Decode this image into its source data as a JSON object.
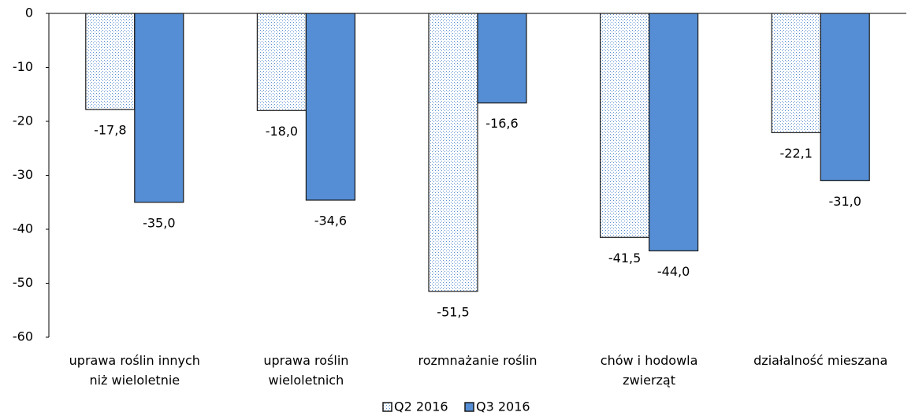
{
  "chart_data": {
    "type": "bar",
    "categories": [
      "uprawa roślin innych\nniż wieloletnie",
      "uprawa roślin\nwieloletnich",
      "rozmnażanie roślin",
      "chów i hodowla\nzwierząt",
      "działalność mieszana"
    ],
    "series": [
      {
        "name": "Q2 2016",
        "color": "#5b8fd0",
        "pattern": "dots",
        "values": [
          -17.8,
          -18.0,
          -51.5,
          -41.5,
          -22.1
        ],
        "value_labels": [
          "-17,8",
          "-18,0",
          "-51,5",
          "-41,5",
          "-22,1"
        ]
      },
      {
        "name": "Q3 2016",
        "color": "#558ed5",
        "values": [
          -35.0,
          -34.6,
          -16.6,
          -44.0,
          -31.0
        ],
        "value_labels": [
          "-35,0",
          "-34,6",
          "-16,6",
          "-44,0",
          "-31,0"
        ]
      }
    ],
    "ylim": [
      -60,
      0
    ],
    "yticks": [
      0,
      -10,
      -20,
      -30,
      -40,
      -50,
      -60
    ],
    "legend": "bottom"
  }
}
